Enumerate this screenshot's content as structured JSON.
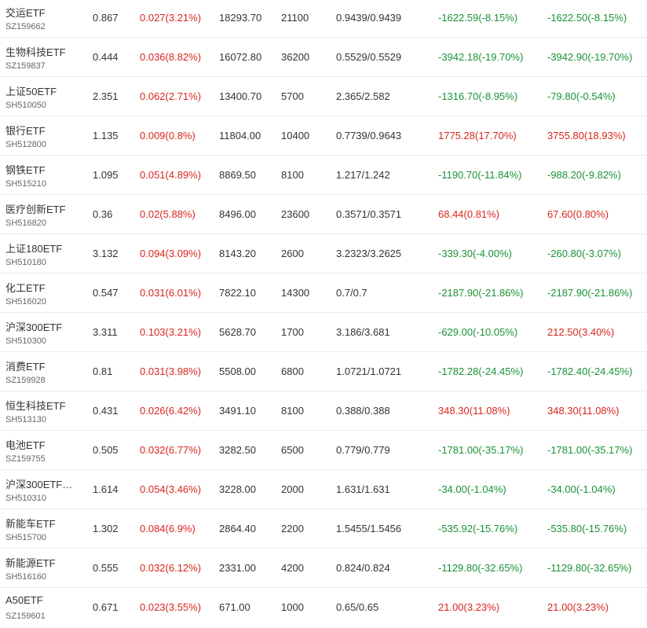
{
  "colors": {
    "up": "#d8261e",
    "down": "#1a9236",
    "text": "#333333",
    "code": "#666666",
    "divider": "#e9e9e9"
  },
  "rows": [
    {
      "name": "交运ETF",
      "code": "SZ159662",
      "price": "0.867",
      "change": "0.027(3.21%)",
      "change_dir": "up",
      "value": "18293.70",
      "qty": "21100",
      "cost": "0.9439/0.9439",
      "pl1": "-1622.59(-8.15%)",
      "pl1_dir": "down",
      "pl2": "-1622.50(-8.15%)",
      "pl2_dir": "down"
    },
    {
      "name": "生物科技ETF",
      "code": "SZ159837",
      "price": "0.444",
      "change": "0.036(8.82%)",
      "change_dir": "up",
      "value": "16072.80",
      "qty": "36200",
      "cost": "0.5529/0.5529",
      "pl1": "-3942.18(-19.70%)",
      "pl1_dir": "down",
      "pl2": "-3942.90(-19.70%)",
      "pl2_dir": "down"
    },
    {
      "name": "上证50ETF",
      "code": "SH510050",
      "price": "2.351",
      "change": "0.062(2.71%)",
      "change_dir": "up",
      "value": "13400.70",
      "qty": "5700",
      "cost": "2.365/2.582",
      "pl1": "-1316.70(-8.95%)",
      "pl1_dir": "down",
      "pl2": "-79.80(-0.54%)",
      "pl2_dir": "down"
    },
    {
      "name": "银行ETF",
      "code": "SH512800",
      "price": "1.135",
      "change": "0.009(0.8%)",
      "change_dir": "up",
      "value": "11804.00",
      "qty": "10400",
      "cost": "0.7739/0.9643",
      "pl1": "1775.28(17.70%)",
      "pl1_dir": "up",
      "pl2": "3755.80(18.93%)",
      "pl2_dir": "up"
    },
    {
      "name": "钢铁ETF",
      "code": "SH515210",
      "price": "1.095",
      "change": "0.051(4.89%)",
      "change_dir": "up",
      "value": "8869.50",
      "qty": "8100",
      "cost": "1.217/1.242",
      "pl1": "-1190.70(-11.84%)",
      "pl1_dir": "down",
      "pl2": "-988.20(-9.82%)",
      "pl2_dir": "down"
    },
    {
      "name": "医疗创新ETF",
      "code": "SH516820",
      "price": "0.36",
      "change": "0.02(5.88%)",
      "change_dir": "up",
      "value": "8496.00",
      "qty": "23600",
      "cost": "0.3571/0.3571",
      "pl1": "68.44(0.81%)",
      "pl1_dir": "up",
      "pl2": "67.60(0.80%)",
      "pl2_dir": "up"
    },
    {
      "name": "上证180ETF",
      "code": "SH510180",
      "price": "3.132",
      "change": "0.094(3.09%)",
      "change_dir": "up",
      "value": "8143.20",
      "qty": "2600",
      "cost": "3.2323/3.2625",
      "pl1": "-339.30(-4.00%)",
      "pl1_dir": "down",
      "pl2": "-260.80(-3.07%)",
      "pl2_dir": "down"
    },
    {
      "name": "化工ETF",
      "code": "SH516020",
      "price": "0.547",
      "change": "0.031(6.01%)",
      "change_dir": "up",
      "value": "7822.10",
      "qty": "14300",
      "cost": "0.7/0.7",
      "pl1": "-2187.90(-21.86%)",
      "pl1_dir": "down",
      "pl2": "-2187.90(-21.86%)",
      "pl2_dir": "down"
    },
    {
      "name": "沪深300ETF",
      "code": "SH510300",
      "price": "3.311",
      "change": "0.103(3.21%)",
      "change_dir": "up",
      "value": "5628.70",
      "qty": "1700",
      "cost": "3.186/3.681",
      "pl1": "-629.00(-10.05%)",
      "pl1_dir": "down",
      "pl2": "212.50(3.40%)",
      "pl2_dir": "up"
    },
    {
      "name": "消费ETF",
      "code": "SZ159928",
      "price": "0.81",
      "change": "0.031(3.98%)",
      "change_dir": "up",
      "value": "5508.00",
      "qty": "6800",
      "cost": "1.0721/1.0721",
      "pl1": "-1782.28(-24.45%)",
      "pl1_dir": "down",
      "pl2": "-1782.40(-24.45%)",
      "pl2_dir": "down"
    },
    {
      "name": "恒生科技ETF",
      "code": "SH513130",
      "price": "0.431",
      "change": "0.026(6.42%)",
      "change_dir": "up",
      "value": "3491.10",
      "qty": "8100",
      "cost": "0.388/0.388",
      "pl1": "348.30(11.08%)",
      "pl1_dir": "up",
      "pl2": "348.30(11.08%)",
      "pl2_dir": "up"
    },
    {
      "name": "电池ETF",
      "code": "SZ159755",
      "price": "0.505",
      "change": "0.032(6.77%)",
      "change_dir": "up",
      "value": "3282.50",
      "qty": "6500",
      "cost": "0.779/0.779",
      "pl1": "-1781.00(-35.17%)",
      "pl1_dir": "down",
      "pl2": "-1781.00(-35.17%)",
      "pl2_dir": "down"
    },
    {
      "name": "沪深300ETF…",
      "code": "SH510310",
      "price": "1.614",
      "change": "0.054(3.46%)",
      "change_dir": "up",
      "value": "3228.00",
      "qty": "2000",
      "cost": "1.631/1.631",
      "pl1": "-34.00(-1.04%)",
      "pl1_dir": "down",
      "pl2": "-34.00(-1.04%)",
      "pl2_dir": "down"
    },
    {
      "name": "新能车ETF",
      "code": "SH515700",
      "price": "1.302",
      "change": "0.084(6.9%)",
      "change_dir": "up",
      "value": "2864.40",
      "qty": "2200",
      "cost": "1.5455/1.5456",
      "pl1": "-535.92(-15.76%)",
      "pl1_dir": "down",
      "pl2": "-535.80(-15.76%)",
      "pl2_dir": "down"
    },
    {
      "name": "新能源ETF",
      "code": "SH516160",
      "price": "0.555",
      "change": "0.032(6.12%)",
      "change_dir": "up",
      "value": "2331.00",
      "qty": "4200",
      "cost": "0.824/0.824",
      "pl1": "-1129.80(-32.65%)",
      "pl1_dir": "down",
      "pl2": "-1129.80(-32.65%)",
      "pl2_dir": "down"
    },
    {
      "name": "A50ETF",
      "code": "SZ159601",
      "price": "0.671",
      "change": "0.023(3.55%)",
      "change_dir": "up",
      "value": "671.00",
      "qty": "1000",
      "cost": "0.65/0.65",
      "pl1": "21.00(3.23%)",
      "pl1_dir": "up",
      "pl2": "21.00(3.23%)",
      "pl2_dir": "up"
    }
  ]
}
